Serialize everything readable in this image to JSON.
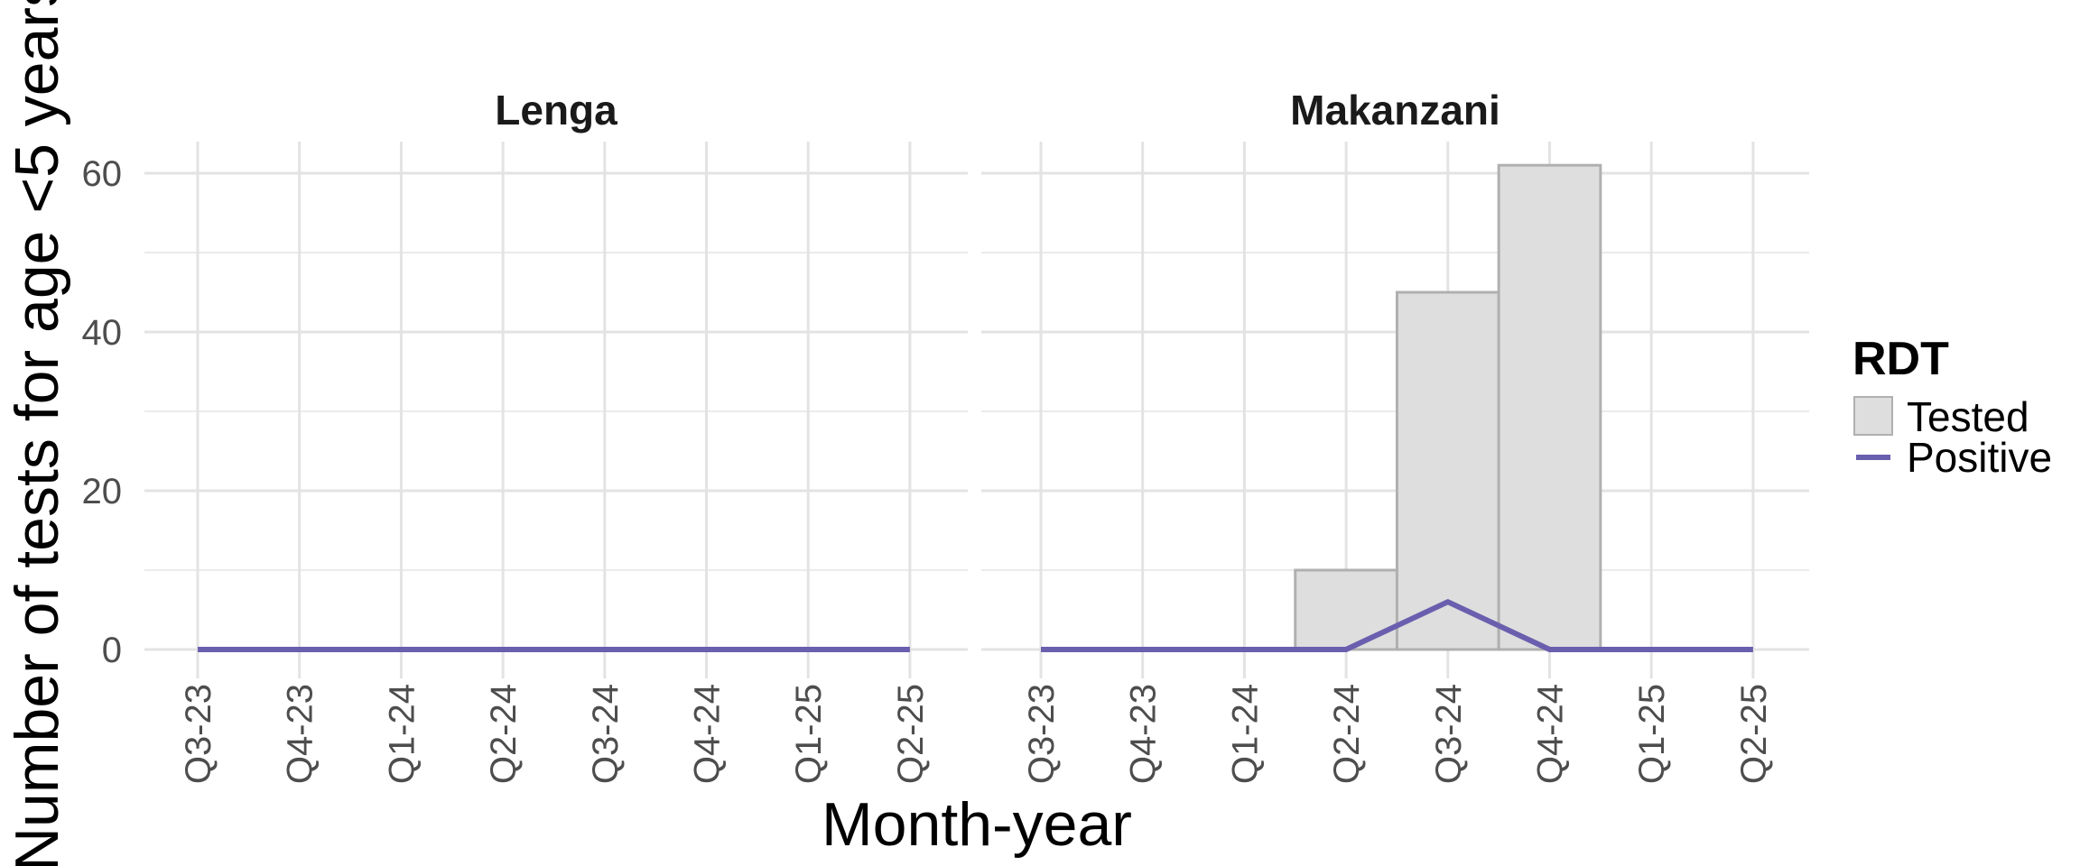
{
  "chart_data": {
    "type": "bar",
    "categories": [
      "Q3-23",
      "Q4-23",
      "Q1-24",
      "Q2-24",
      "Q3-24",
      "Q4-24",
      "Q1-25",
      "Q2-25"
    ],
    "xlabel": "Month-year",
    "ylabel": "Number of tests for age <5 years",
    "ylim": [
      0,
      64
    ],
    "yticks": [
      0,
      20,
      40,
      60
    ],
    "grid": true,
    "legend": {
      "title": "RDT",
      "position": "right",
      "entries": [
        {
          "label": "Tested",
          "kind": "bar",
          "fill": "#dedede",
          "stroke": "#b0b0b0"
        },
        {
          "label": "Positive",
          "kind": "line",
          "color": "#6a5fae"
        }
      ]
    },
    "facets": [
      {
        "title": "Lenga",
        "tested": [
          0,
          0,
          0,
          0,
          0,
          0,
          0,
          0
        ],
        "positive": [
          0,
          0,
          0,
          0,
          0,
          0,
          0,
          0
        ]
      },
      {
        "title": "Makanzani",
        "tested": [
          0,
          0,
          0,
          10,
          45,
          61,
          0,
          0
        ],
        "positive": [
          0,
          0,
          0,
          0,
          6,
          0,
          0,
          0
        ]
      }
    ]
  }
}
